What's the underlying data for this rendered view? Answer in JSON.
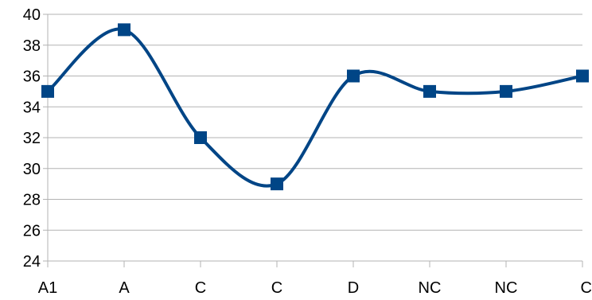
{
  "chart_data": {
    "type": "line",
    "title": "",
    "xlabel": "",
    "ylabel": "",
    "categories": [
      "A1",
      "A",
      "C",
      "C",
      "D",
      "NC",
      "NC",
      "C"
    ],
    "series": [
      {
        "values": [
          35,
          39,
          32,
          29,
          36,
          35,
          35,
          36
        ]
      }
    ],
    "ylim": [
      24,
      40
    ],
    "yticks": [
      24,
      26,
      28,
      30,
      32,
      34,
      36,
      38,
      40
    ],
    "smooth": true,
    "marker": "square",
    "grid": "horizontal",
    "legend": "none",
    "colors": {
      "series": "#004586",
      "grid": "#b3b3b3",
      "axis": "#b3b3b3",
      "text": "#000000"
    }
  }
}
